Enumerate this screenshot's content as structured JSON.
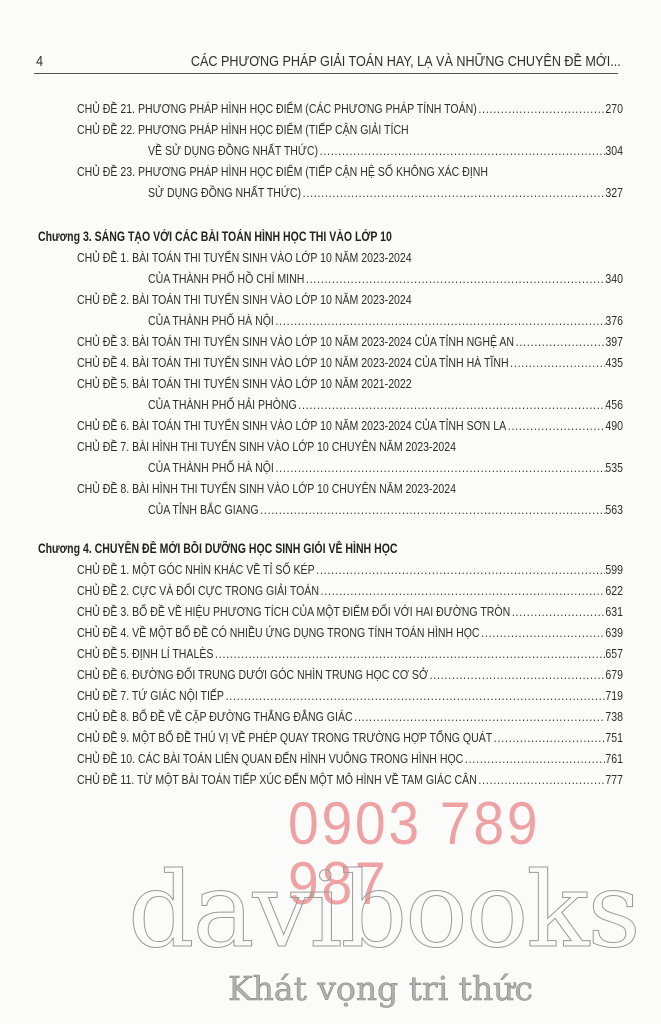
{
  "header": {
    "page_number": "4",
    "running_title": "CÁC PHƯƠNG PHÁP GIẢI TOÁN HAY, LẠ VÀ NHỮNG CHUYÊN ĐỀ MỚI..."
  },
  "toc": [
    {
      "chapter": null,
      "items": [
        {
          "lines": [
            "CHỦ ĐỀ 21. PHƯƠNG PHÁP HÌNH HỌC ĐIỂM (CÁC PHƯƠNG PHÁP TÍNH TOÁN)"
          ],
          "page": "270"
        },
        {
          "lines": [
            "CHỦ ĐỀ 22. PHƯƠNG PHÁP HÌNH HỌC ĐIỂM (TIẾP CẬN GIẢI TÍCH",
            "VỀ SỬ DỤNG ĐỒNG NHẤT THỨC)"
          ],
          "page": "304"
        },
        {
          "lines": [
            "CHỦ ĐỀ 23. PHƯƠNG PHÁP HÌNH HỌC ĐIỂM (TIẾP CẬN HỆ SỐ KHÔNG XÁC ĐỊNH",
            "SỬ DỤNG ĐỒNG NHẤT THỨC)"
          ],
          "page": "327"
        }
      ]
    },
    {
      "chapter": "Chương 3. SÁNG TẠO VỚI CÁC BÀI TOÁN HÌNH HỌC THI VÀO LỚP 10",
      "items": [
        {
          "lines": [
            "CHỦ ĐỀ 1. BÀI TOÁN THI TUYỂN SINH VÀO LỚP 10 NĂM 2023-2024",
            "CỦA THÀNH PHỐ HỒ CHÍ MINH"
          ],
          "page": "340"
        },
        {
          "lines": [
            "CHỦ ĐỀ 2. BÀI TOÁN THI TUYỂN SINH VÀO LỚP 10 NĂM 2023-2024",
            "CỦA THÀNH PHỐ HÀ NỘI"
          ],
          "page": "376"
        },
        {
          "lines": [
            "CHỦ ĐỀ 3. BÀI TOÁN THI TUYỂN SINH VÀO LỚP 10 NĂM 2023-2024 CỦA TỈNH NGHỆ AN"
          ],
          "page": "397"
        },
        {
          "lines": [
            "CHỦ ĐỀ 4. BÀI TOÁN THI TUYỂN SINH VÀO LỚP 10 NĂM 2023-2024 CỦA TỈNH HÀ TĨNH"
          ],
          "page": "435"
        },
        {
          "lines": [
            "CHỦ ĐỀ 5. BÀI TOÁN THI TUYỂN SINH VÀO LỚP 10 NĂM 2021-2022",
            "CỦA THÀNH PHỐ HẢI PHÒNG"
          ],
          "page": "456"
        },
        {
          "lines": [
            "CHỦ ĐỀ 6. BÀI TOÁN THI TUYỂN SINH VÀO LỚP 10 NĂM 2023-2024 CỦA TỈNH SƠN LA"
          ],
          "page": "490"
        },
        {
          "lines": [
            "CHỦ ĐỀ 7. BÀI HÌNH THI TUYỂN SINH VÀO LỚP 10 CHUYÊN NĂM 2023-2024",
            "CỦA THÀNH PHỐ HÀ NỘI"
          ],
          "page": "535"
        },
        {
          "lines": [
            "CHỦ ĐỀ 8. BÀI HÌNH THI TUYỂN SINH VÀO LỚP 10 CHUYÊN NĂM 2023-2024",
            "CỦA TỈNH BẮC GIANG"
          ],
          "page": "563"
        }
      ]
    },
    {
      "chapter": "Chương 4. CHUYÊN ĐỀ MỚI BỒI DƯỠNG HỌC SINH GIỎI VỀ HÌNH HỌC",
      "items": [
        {
          "lines": [
            "CHỦ ĐỀ 1. MỘT GÓC NHÌN KHÁC VỀ TỈ SỐ KÉP"
          ],
          "page": "599"
        },
        {
          "lines": [
            "CHỦ ĐỀ 2. CỰC VÀ ĐỐI CỰC TRONG GIẢI TOÁN"
          ],
          "page": "622"
        },
        {
          "lines": [
            "CHỦ ĐỀ 3. BỔ ĐỀ VỀ HIỆU PHƯƠNG TÍCH CỦA MỘT ĐIỂM  ĐỐI VỚI HAI ĐƯỜNG TRÒN"
          ],
          "page": "631"
        },
        {
          "lines": [
            "CHỦ ĐỀ 4. VỀ MỘT BỔ ĐỀ CÓ NHIỀU ỨNG DỤNG  TRONG TÍNH TOÁN HÌNH HỌC"
          ],
          "page": "639"
        },
        {
          "lines": [
            "CHỦ ĐỀ 5. ĐỊNH LÍ THALÈS"
          ],
          "page": "657"
        },
        {
          "lines": [
            "CHỦ ĐỀ 6. ĐƯỜNG ĐỐI TRUNG DƯỚI GÓC NHÌN TRUNG HỌC CƠ SỞ"
          ],
          "page": "679"
        },
        {
          "lines": [
            "CHỦ ĐỀ 7. TỨ GIÁC NỘI TIẾP"
          ],
          "page": "719"
        },
        {
          "lines": [
            "CHỦ ĐỀ 8. BỔ ĐỀ VỀ CẶP ĐƯỜNG THẲNG ĐẲNG GIÁC"
          ],
          "page": "738"
        },
        {
          "lines": [
            "CHỦ ĐỀ 9. MỘT BỔ ĐỀ THÚ VỊ VỀ PHÉP QUAY TRONG TRƯỜNG HỢP TỔNG QUÁT"
          ],
          "page": "751"
        },
        {
          "lines": [
            "CHỦ ĐỀ 10. CÁC BÀI TOÁN LIÊN QUAN ĐẾN HÌNH VUÔNG TRONG HÌNH HỌC"
          ],
          "page": "761"
        },
        {
          "lines": [
            "CHỦ ĐỀ 11. TỪ MỘT BÀI TOÁN TIẾP XÚC ĐẾN MỘT MÔ HÌNH VỀ TAM GIÁC CÂN"
          ],
          "page": "777"
        }
      ]
    }
  ],
  "watermark": {
    "brand": "davibooks",
    "slogan": "Khát vọng tri thức",
    "phone": "0903 789 987",
    "phone_color": "#e65a5f"
  }
}
